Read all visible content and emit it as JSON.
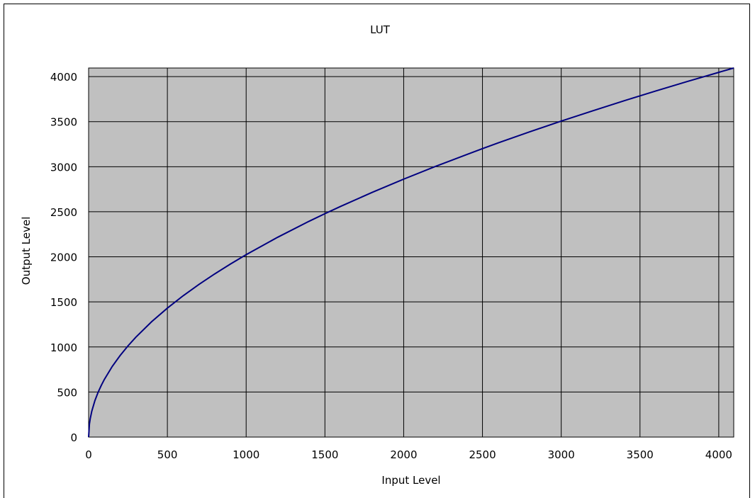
{
  "chart_data": {
    "type": "line",
    "title": "LUT",
    "xlabel": "Input Level",
    "ylabel": "Output Level",
    "xlim": [
      0,
      4095
    ],
    "ylim": [
      0,
      4095
    ],
    "xticks": [
      0,
      500,
      1000,
      1500,
      2000,
      2500,
      3000,
      3500,
      4000
    ],
    "yticks": [
      0,
      500,
      1000,
      1500,
      2000,
      2500,
      3000,
      3500,
      4000
    ],
    "grid": true,
    "legend": "none",
    "plot_background": "#c0c0c0",
    "series": [
      {
        "color": "#000080",
        "x": [
          0,
          5,
          10,
          20,
          40,
          60,
          80,
          100,
          150,
          200,
          250,
          300,
          400,
          500,
          600,
          700,
          800,
          900,
          1000,
          1200,
          1400,
          1500,
          1600,
          1800,
          2000,
          2200,
          2400,
          2500,
          2600,
          2800,
          3000,
          3200,
          3400,
          3500,
          3600,
          3800,
          4000,
          4095
        ],
        "y": [
          0,
          143,
          202,
          286,
          405,
          496,
          572,
          640,
          784,
          905,
          1012,
          1109,
          1280,
          1431,
          1568,
          1693,
          1810,
          1920,
          2024,
          2217,
          2395,
          2479,
          2560,
          2715,
          2862,
          3002,
          3135,
          3200,
          3264,
          3387,
          3506,
          3620,
          3732,
          3786,
          3840,
          3945,
          4047,
          4095
        ]
      }
    ]
  }
}
